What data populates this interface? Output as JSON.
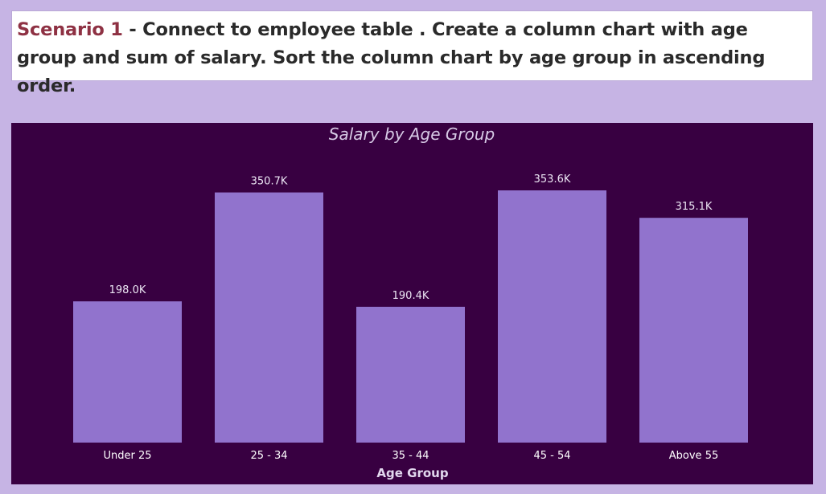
{
  "header": {
    "scenario_label": "Scenario 1",
    "task_text": " - Connect to employee table . Create a column chart with age group and sum of salary. Sort the column chart by age group in ascending order."
  },
  "colors": {
    "page_background": "#c6b4e4",
    "panel_background": "#380041",
    "bar": "#9173cd",
    "scenario_label": "#8e3143"
  },
  "chart_data": {
    "type": "bar",
    "title": "Salary by Age Group",
    "xlabel": "Age Group",
    "ylabel": "",
    "categories": [
      "Under 25",
      "25 - 34",
      "35 - 44",
      "45 - 54",
      "Above 55"
    ],
    "values": [
      198000,
      350700,
      190400,
      353600,
      315100
    ],
    "data_labels": [
      "198.0K",
      "350.7K",
      "190.4K",
      "353.6K",
      "315.1K"
    ],
    "ylim": [
      0,
      353600
    ],
    "grid": false,
    "legend": "none"
  }
}
